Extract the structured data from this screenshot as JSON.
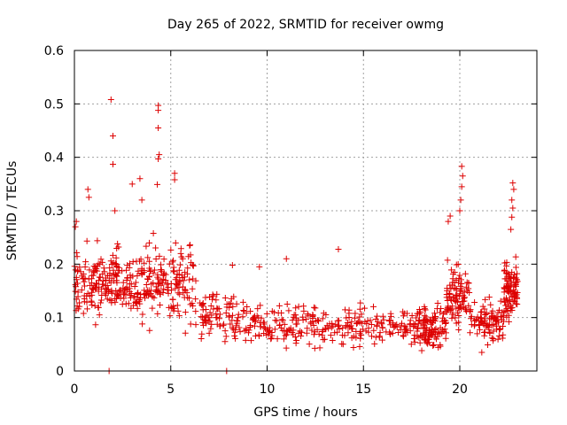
{
  "chart_data": {
    "type": "scatter",
    "title": "Day 265 of 2022, SRMTID for receiver owmg",
    "xlabel": "GPS time / hours",
    "ylabel": "SRMTID / TECUs",
    "xlim": [
      0,
      24
    ],
    "ylim": [
      0,
      0.6
    ],
    "x_ticks": [
      0,
      5,
      10,
      15,
      20
    ],
    "x_tick_labels": [
      "0",
      "5",
      "10",
      "15",
      "20"
    ],
    "y_ticks": [
      0,
      0.1,
      0.2,
      0.3,
      0.4,
      0.5,
      0.6
    ],
    "y_tick_labels": [
      "0",
      "0.1",
      "0.2",
      "0.3",
      "0.4",
      "0.5",
      "0.6"
    ],
    "grid": true,
    "marker": "plus",
    "series_color": "#dd0000",
    "outliers": [
      {
        "x": 1.9,
        "y": 0.508
      },
      {
        "x": 2.0,
        "y": 0.44
      },
      {
        "x": 2.0,
        "y": 0.387
      },
      {
        "x": 4.35,
        "y": 0.497
      },
      {
        "x": 4.35,
        "y": 0.488
      },
      {
        "x": 4.35,
        "y": 0.455
      },
      {
        "x": 4.4,
        "y": 0.405
      },
      {
        "x": 4.35,
        "y": 0.397
      },
      {
        "x": 4.3,
        "y": 0.349
      },
      {
        "x": 5.2,
        "y": 0.37
      },
      {
        "x": 5.2,
        "y": 0.358
      },
      {
        "x": 3.4,
        "y": 0.36
      },
      {
        "x": 3.0,
        "y": 0.35
      },
      {
        "x": 3.5,
        "y": 0.32
      },
      {
        "x": 0.7,
        "y": 0.34
      },
      {
        "x": 0.75,
        "y": 0.325
      },
      {
        "x": 0.1,
        "y": 0.28
      },
      {
        "x": 0.05,
        "y": 0.27
      },
      {
        "x": 2.1,
        "y": 0.3
      },
      {
        "x": 13.7,
        "y": 0.228
      },
      {
        "x": 11.0,
        "y": 0.21
      },
      {
        "x": 20.1,
        "y": 0.383
      },
      {
        "x": 20.15,
        "y": 0.365
      },
      {
        "x": 20.1,
        "y": 0.345
      },
      {
        "x": 20.05,
        "y": 0.32
      },
      {
        "x": 20.0,
        "y": 0.3
      },
      {
        "x": 19.5,
        "y": 0.29
      },
      {
        "x": 19.4,
        "y": 0.28
      },
      {
        "x": 22.75,
        "y": 0.352
      },
      {
        "x": 22.8,
        "y": 0.34
      },
      {
        "x": 22.7,
        "y": 0.32
      },
      {
        "x": 22.75,
        "y": 0.305
      },
      {
        "x": 22.7,
        "y": 0.288
      },
      {
        "x": 22.65,
        "y": 0.265
      },
      {
        "x": 9.6,
        "y": 0.195
      },
      {
        "x": 8.2,
        "y": 0.198
      },
      {
        "x": 1.8,
        "y": 0.0
      },
      {
        "x": 7.9,
        "y": 0.0
      }
    ],
    "envelope": [
      {
        "x": [
          0.0,
          1.5
        ],
        "y_min": 0.07,
        "y_max": 0.26
      },
      {
        "x": [
          1.5,
          3.0
        ],
        "y_min": 0.08,
        "y_max": 0.25
      },
      {
        "x": [
          3.0,
          4.5
        ],
        "y_min": 0.06,
        "y_max": 0.27
      },
      {
        "x": [
          4.5,
          6.3
        ],
        "y_min": 0.06,
        "y_max": 0.28
      },
      {
        "x": [
          6.3,
          9.0
        ],
        "y_min": 0.04,
        "y_max": 0.16
      },
      {
        "x": [
          9.0,
          12.0
        ],
        "y_min": 0.03,
        "y_max": 0.15
      },
      {
        "x": [
          12.0,
          15.0
        ],
        "y_min": 0.03,
        "y_max": 0.14
      },
      {
        "x": [
          15.0,
          18.0
        ],
        "y_min": 0.04,
        "y_max": 0.13
      },
      {
        "x": [
          18.0,
          19.3
        ],
        "y_min": 0.03,
        "y_max": 0.14
      },
      {
        "x": [
          19.3,
          20.5
        ],
        "y_min": 0.06,
        "y_max": 0.22
      },
      {
        "x": [
          20.5,
          22.3
        ],
        "y_min": 0.03,
        "y_max": 0.15
      },
      {
        "x": [
          22.3,
          23.0
        ],
        "y_min": 0.08,
        "y_max": 0.22
      }
    ],
    "points_per_segment": 95
  }
}
